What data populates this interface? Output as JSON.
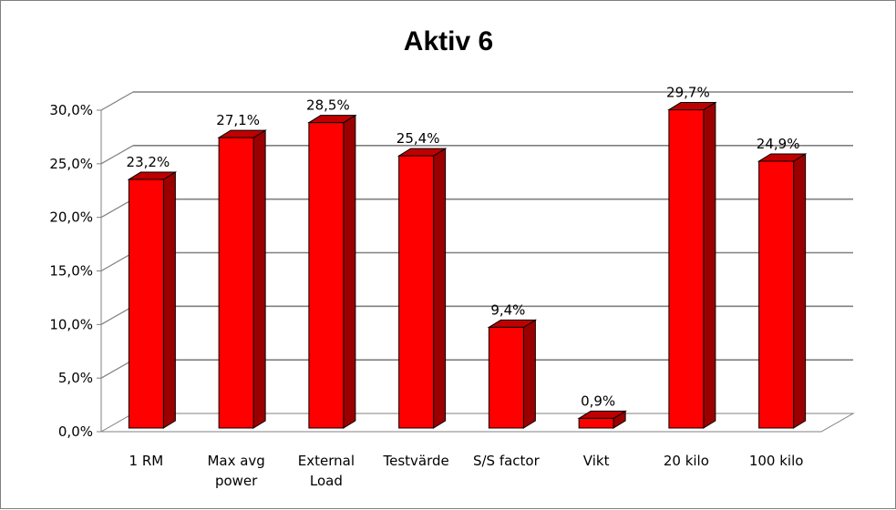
{
  "chart_data": {
    "type": "bar",
    "title": "Aktiv 6",
    "categories": [
      "1 RM",
      "Max avg power",
      "External Load",
      "Testvärde",
      "S/S factor",
      "Vikt",
      "20 kilo",
      "100 kilo"
    ],
    "category_labels": [
      [
        "1 RM"
      ],
      [
        "Max avg",
        "power"
      ],
      [
        "External",
        "Load"
      ],
      [
        "Testvärde"
      ],
      [
        "S/S factor"
      ],
      [
        "Vikt"
      ],
      [
        "20 kilo"
      ],
      [
        "100 kilo"
      ]
    ],
    "values": [
      23.2,
      27.1,
      28.5,
      25.4,
      9.4,
      0.9,
      29.7,
      24.9
    ],
    "value_labels": [
      "23,2%",
      "27,1%",
      "28,5%",
      "25,4%",
      "9,4%",
      "0,9%",
      "29,7%",
      "24,9%"
    ],
    "y_ticks": [
      "0,0%",
      "5,0%",
      "10,0%",
      "15,0%",
      "20,0%",
      "25,0%",
      "30,0%"
    ],
    "ylim": [
      0,
      30
    ],
    "grid": true,
    "legend": "none",
    "style": "3d",
    "colors": {
      "bar_front": "#ff0000",
      "bar_side": "#9b0000",
      "bar_top": "#c00000",
      "gridline": "#808080",
      "wall": "#ffffff"
    }
  }
}
